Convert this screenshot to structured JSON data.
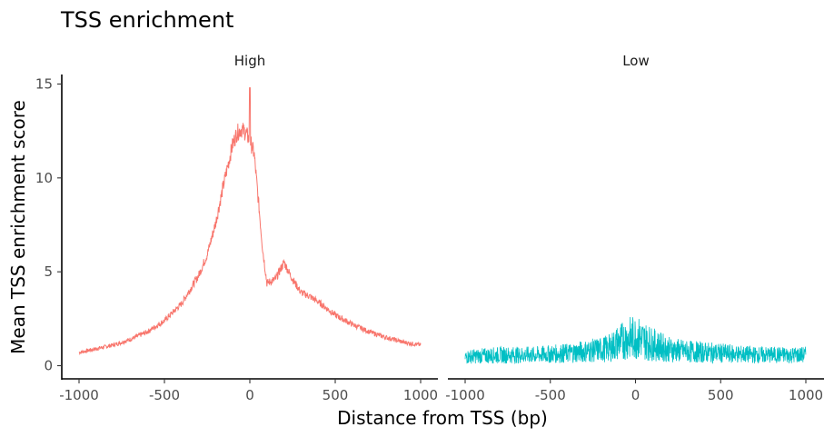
{
  "chart_data": {
    "type": "line",
    "title": "TSS enrichment",
    "xlabel": "Distance from TSS (bp)",
    "ylabel": "Mean TSS enrichment score",
    "xlim": [
      -1000,
      1000
    ],
    "ylim": [
      0,
      15
    ],
    "x_ticks": [
      -1000,
      -500,
      0,
      500,
      1000
    ],
    "y_ticks": [
      0,
      5,
      10,
      15
    ],
    "x_tick_labels": [
      "-1000",
      "-500",
      "0",
      "500",
      "1000"
    ],
    "y_tick_labels": [
      "0",
      "5",
      "10",
      "15"
    ],
    "grid": false,
    "legend": "none",
    "facets": [
      {
        "label": "High",
        "color": "#F8766D",
        "x": [
          -1000,
          -900,
          -800,
          -700,
          -600,
          -500,
          -400,
          -300,
          -250,
          -200,
          -150,
          -100,
          -75,
          -50,
          -25,
          0,
          25,
          50,
          75,
          100,
          150,
          200,
          250,
          300,
          350,
          400,
          500,
          600,
          700,
          800,
          900,
          1000
        ],
        "y": [
          0.7,
          0.9,
          1.1,
          1.4,
          1.8,
          2.4,
          3.3,
          4.8,
          5.9,
          7.6,
          9.8,
          11.8,
          12.4,
          12.6,
          12.4,
          12.0,
          11.3,
          8.8,
          6.2,
          4.4,
          4.6,
          5.5,
          4.6,
          3.9,
          3.7,
          3.4,
          2.7,
          2.2,
          1.8,
          1.5,
          1.25,
          1.1
        ]
      },
      {
        "label": "Low",
        "color": "#00BFC4",
        "x": [
          -1000,
          -900,
          -800,
          -700,
          -600,
          -500,
          -400,
          -300,
          -200,
          -150,
          -100,
          -50,
          0,
          50,
          100,
          200,
          300,
          400,
          500,
          600,
          700,
          800,
          900,
          1000
        ],
        "y": [
          0.5,
          0.55,
          0.6,
          0.6,
          0.6,
          0.65,
          0.7,
          0.8,
          0.9,
          1.0,
          1.3,
          1.5,
          1.6,
          1.4,
          1.2,
          0.9,
          0.8,
          0.75,
          0.7,
          0.65,
          0.6,
          0.6,
          0.6,
          0.6
        ]
      }
    ]
  }
}
